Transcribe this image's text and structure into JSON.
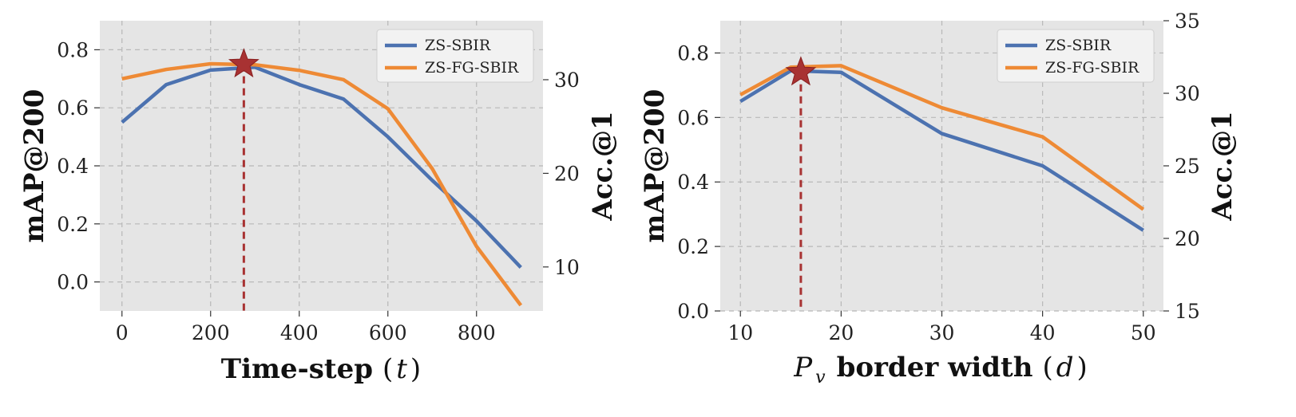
{
  "chart_data": [
    {
      "type": "line",
      "xlabel_main": "Time-step",
      "xlabel_open": "(",
      "xlabel_var": "t",
      "xlabel_close": ")",
      "ylabel": "mAP@200",
      "y2label": "Acc.@1",
      "xlim": [
        -50,
        950
      ],
      "ylim": [
        -0.1,
        0.9
      ],
      "y2lim": [
        5.3,
        36.3
      ],
      "xticks": [
        0,
        200,
        400,
        600,
        800
      ],
      "xtick_labels": [
        "0",
        "200",
        "400",
        "600",
        "800"
      ],
      "yticks": [
        0.0,
        0.2,
        0.4,
        0.6,
        0.8
      ],
      "ytick_labels": [
        "0.0",
        "0.2",
        "0.4",
        "0.6",
        "0.8"
      ],
      "y2ticks": [
        10,
        20,
        30
      ],
      "y2tick_labels": [
        "10",
        "20",
        "30"
      ],
      "grid": true,
      "legend_position": "top-right",
      "series": [
        {
          "name": "ZS-SBIR",
          "axis": "left",
          "color": "#4c72b0",
          "x": [
            0,
            100,
            200,
            300,
            400,
            500,
            600,
            700,
            800,
            900
          ],
          "y": [
            0.55,
            0.68,
            0.73,
            0.74,
            0.68,
            0.63,
            0.5,
            0.35,
            0.21,
            0.05
          ]
        },
        {
          "name": "ZS-FG-SBIR",
          "axis": "right",
          "color": "#ee8a35",
          "x": [
            0,
            100,
            200,
            300,
            400,
            500,
            600,
            700,
            800,
            900
          ],
          "y": [
            30.1,
            31.1,
            31.7,
            31.6,
            31.0,
            30.0,
            26.9,
            20.5,
            12.2,
            5.9
          ]
        }
      ],
      "marker": {
        "x": 275,
        "y": 0.75,
        "shape": "star",
        "color": "#a83232",
        "vline": true
      }
    },
    {
      "type": "line",
      "xlabel_prefix": "P",
      "xlabel_sub": "v",
      "xlabel_main": "border width",
      "xlabel_open": "(",
      "xlabel_var": "d",
      "xlabel_close": ")",
      "ylabel": "mAP@200",
      "y2label": "Acc.@1",
      "xlim": [
        8,
        52
      ],
      "ylim": [
        0.0,
        0.9
      ],
      "y2lim": [
        15,
        35
      ],
      "xticks": [
        10,
        20,
        30,
        40,
        50
      ],
      "xtick_labels": [
        "10",
        "20",
        "30",
        "40",
        "50"
      ],
      "yticks": [
        0.0,
        0.2,
        0.4,
        0.6,
        0.8
      ],
      "ytick_labels": [
        "0.0",
        "0.2",
        "0.4",
        "0.6",
        "0.8"
      ],
      "y2ticks": [
        15,
        20,
        25,
        30,
        35
      ],
      "y2tick_labels": [
        "15",
        "20",
        "25",
        "30",
        "35"
      ],
      "grid": true,
      "legend_position": "top-right",
      "series": [
        {
          "name": "ZS-SBIR",
          "axis": "left",
          "color": "#4c72b0",
          "x": [
            10,
            15,
            20,
            30,
            40,
            50
          ],
          "y": [
            0.65,
            0.745,
            0.74,
            0.55,
            0.45,
            0.25
          ]
        },
        {
          "name": "ZS-FG-SBIR",
          "axis": "right",
          "color": "#ee8a35",
          "x": [
            10,
            15,
            20,
            30,
            40,
            50
          ],
          "y": [
            29.9,
            31.8,
            31.9,
            29.0,
            27.0,
            22.0
          ]
        }
      ],
      "marker": {
        "x": 16,
        "y": 0.74,
        "shape": "star",
        "color": "#a83232",
        "vline": true
      }
    }
  ]
}
